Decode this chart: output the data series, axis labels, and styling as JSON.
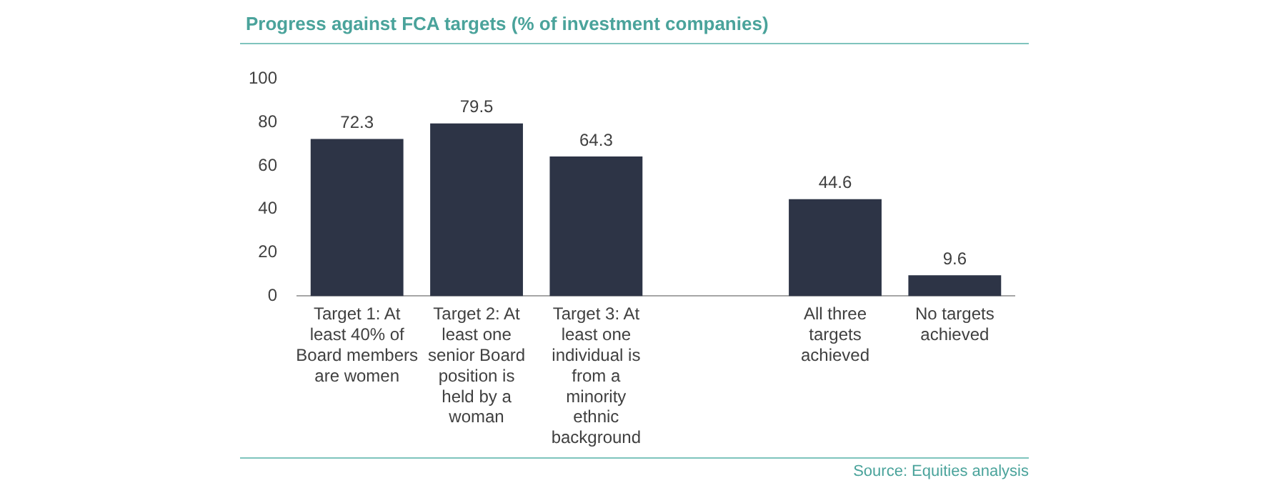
{
  "chart_data": {
    "type": "bar",
    "title": "Progress against FCA targets (% of investment companies)",
    "categories": [
      "Target 1: At least 40% of Board members are women",
      "Target 2: At least one senior Board position is held by a woman",
      "Target 3: At least one individual is from a minority ethnic background",
      null,
      "All three targets achieved",
      "No targets achieved"
    ],
    "values": [
      72.3,
      79.5,
      64.3,
      null,
      44.6,
      9.6
    ],
    "color": "#2d3446",
    "ylim": [
      0,
      100
    ],
    "yticks": [
      0,
      20,
      40,
      60,
      80,
      100
    ],
    "grid": false,
    "legend": false,
    "data_labels": true,
    "annotations": [
      "Source: Equities analysis"
    ]
  }
}
